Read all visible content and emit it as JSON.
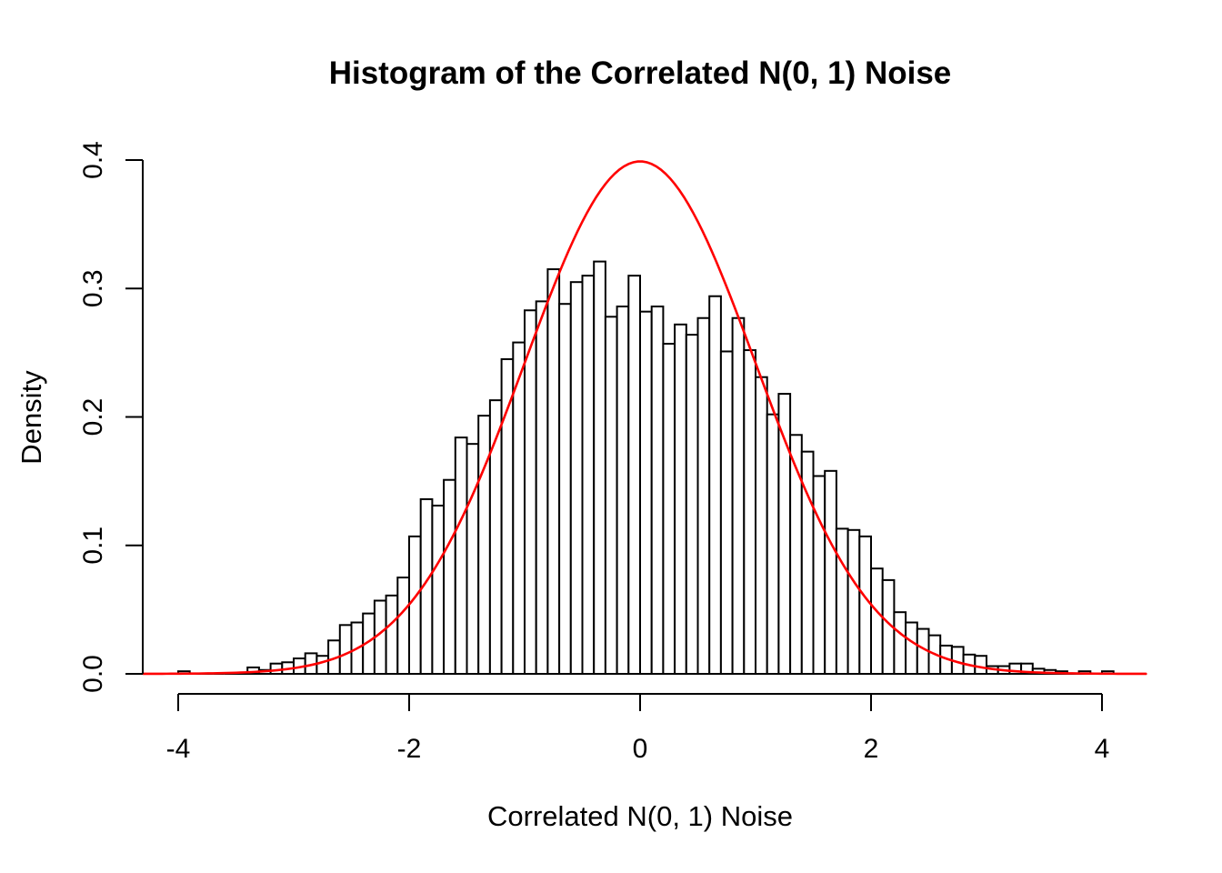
{
  "chart_data": {
    "type": "bar",
    "subtype": "histogram",
    "title": "Histogram of the Correlated N(0, 1) Noise",
    "xlabel": "Correlated N(0, 1) Noise",
    "ylabel": "Density",
    "grid": false,
    "legend_position": "none",
    "xlim": [
      -4.3,
      4.4
    ],
    "ylim": [
      0,
      0.4
    ],
    "x_ticks": [
      -4,
      -2,
      0,
      2,
      4
    ],
    "x_tick_labels": [
      "-4",
      "-2",
      "0",
      "2",
      "4"
    ],
    "y_ticks": [
      0,
      0.1,
      0.2,
      0.3,
      0.4
    ],
    "y_tick_labels": [
      "0.0",
      "0.1",
      "0.2",
      "0.3",
      "0.4"
    ],
    "bin_start": -4.0,
    "bin_width": 0.1,
    "values": [
      0.002,
      0,
      0,
      0,
      0,
      0,
      0.005,
      0.003,
      0.008,
      0.009,
      0.012,
      0.016,
      0.014,
      0.026,
      0.038,
      0.04,
      0.047,
      0.057,
      0.061,
      0.075,
      0.107,
      0.136,
      0.131,
      0.151,
      0.184,
      0.179,
      0.201,
      0.213,
      0.245,
      0.258,
      0.283,
      0.29,
      0.315,
      0.288,
      0.305,
      0.31,
      0.321,
      0.278,
      0.286,
      0.31,
      0.282,
      0.286,
      0.257,
      0.272,
      0.264,
      0.277,
      0.294,
      0.251,
      0.277,
      0.252,
      0.231,
      0.202,
      0.218,
      0.186,
      0.173,
      0.154,
      0.158,
      0.113,
      0.112,
      0.107,
      0.082,
      0.073,
      0.048,
      0.04,
      0.035,
      0.03,
      0.022,
      0.021,
      0.015,
      0.014,
      0.006,
      0.006,
      0.008,
      0.008,
      0.004,
      0.003,
      0.002,
      0,
      0.002,
      0,
      0.002
    ],
    "bar_fill": "#ffffff",
    "bar_stroke": "#000000",
    "overlay_curve": {
      "name": "standard-normal-density",
      "distribution": "N(0, 1)",
      "mean": 0,
      "sd": 1,
      "peak_density": 0.3989,
      "x_range": [
        -4.3,
        4.4
      ],
      "color": "#ff0000"
    }
  }
}
